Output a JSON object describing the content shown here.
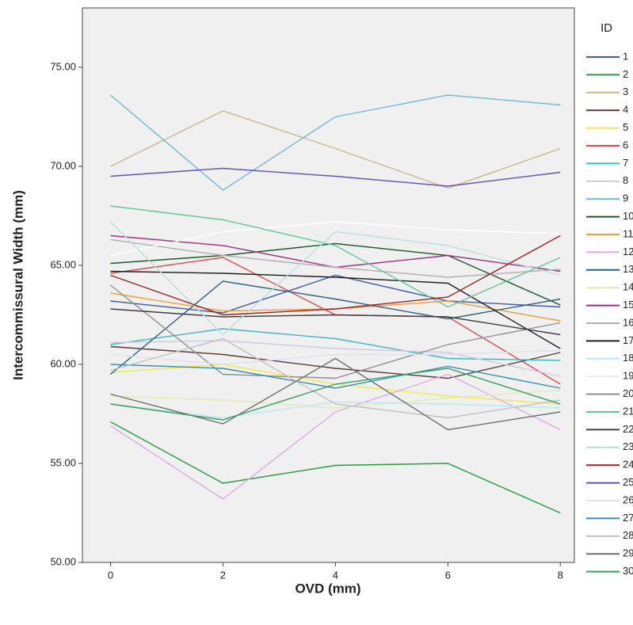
{
  "chart_data": {
    "type": "line",
    "x_label": "OVD (mm)",
    "y_label": "Intercommissural Width (mm)",
    "legend_title": "ID",
    "x": [
      0,
      2,
      4,
      6,
      8
    ],
    "xlim": [
      -0.5,
      8.25
    ],
    "xticks": [
      0,
      2,
      4,
      6,
      8
    ],
    "ylim": [
      50,
      78
    ],
    "yticks": [
      {
        "value": 50,
        "label": "50.00"
      },
      {
        "value": 55,
        "label": "55.00"
      },
      {
        "value": 60,
        "label": "60.00"
      },
      {
        "value": 65,
        "label": "65.00"
      },
      {
        "value": 70,
        "label": "70.00"
      },
      {
        "value": 75,
        "label": "75.00"
      }
    ],
    "series": [
      {
        "name": "1",
        "color": "#3e5ba8",
        "values": [
          63.2,
          62.6,
          64.5,
          63.2,
          62.9
        ]
      },
      {
        "name": "2",
        "color": "#1fa03a",
        "values": [
          57.1,
          54.0,
          54.9,
          55.0,
          52.5
        ]
      },
      {
        "name": "3",
        "color": "#c8b98a",
        "values": [
          70.0,
          72.8,
          70.9,
          68.9,
          70.9
        ]
      },
      {
        "name": "4",
        "color": "#5a3a3a",
        "values": [
          60.9,
          60.5,
          59.8,
          59.3,
          60.6
        ]
      },
      {
        "name": "5",
        "color": "#f5e84a",
        "values": [
          59.6,
          60.0,
          59.0,
          58.4,
          58.0
        ]
      },
      {
        "name": "6",
        "color": "#e04a4a",
        "values": [
          64.6,
          65.4,
          62.5,
          62.4,
          59.0
        ]
      },
      {
        "name": "7",
        "color": "#39b9c0",
        "values": [
          61.0,
          61.8,
          61.3,
          60.3,
          60.2
        ]
      },
      {
        "name": "8",
        "color": "#d0c8e0",
        "values": [
          61.1,
          61.2,
          60.8,
          60.6,
          59.4
        ]
      },
      {
        "name": "9",
        "color": "#6fb8d8",
        "values": [
          73.6,
          68.8,
          72.5,
          73.6,
          73.1
        ]
      },
      {
        "name": "10",
        "color": "#1a5a2a",
        "values": [
          65.1,
          65.5,
          66.1,
          65.5,
          63.0
        ]
      },
      {
        "name": "11",
        "color": "#f0a030",
        "values": [
          63.6,
          62.7,
          62.8,
          63.2,
          62.2
        ]
      },
      {
        "name": "12",
        "color": "#e0a8e8",
        "values": [
          56.9,
          53.2,
          57.6,
          59.5,
          56.7
        ]
      },
      {
        "name": "13",
        "color": "#2a6080",
        "values": [
          59.5,
          64.2,
          63.3,
          62.3,
          63.3
        ]
      },
      {
        "name": "14",
        "color": "#e0ecb0",
        "values": [
          58.4,
          58.2,
          57.8,
          58.3,
          58.7
        ]
      },
      {
        "name": "15",
        "color": "#a03080",
        "values": [
          66.5,
          66.0,
          64.9,
          65.5,
          64.7
        ]
      },
      {
        "name": "16",
        "color": "#b0b0b0",
        "values": [
          66.3,
          65.5,
          64.9,
          64.4,
          64.8
        ]
      },
      {
        "name": "17",
        "color": "#202020",
        "values": [
          64.7,
          64.6,
          64.4,
          64.1,
          60.8
        ]
      },
      {
        "name": "18",
        "color": "#b8e8f0",
        "values": [
          58.0,
          57.3,
          58.1,
          58.0,
          57.8
        ]
      },
      {
        "name": "19",
        "color": "#ffffff",
        "values": [
          65.5,
          66.7,
          67.2,
          66.8,
          66.6
        ]
      },
      {
        "name": "20",
        "color": "#909090",
        "values": [
          64.0,
          59.5,
          59.3,
          61.0,
          62.1
        ]
      },
      {
        "name": "21",
        "color": "#60c890",
        "values": [
          68.0,
          67.3,
          66.0,
          62.9,
          65.4
        ]
      },
      {
        "name": "22",
        "color": "#404040",
        "values": [
          62.8,
          62.4,
          62.5,
          62.4,
          61.5
        ]
      },
      {
        "name": "23",
        "color": "#b8e0e0",
        "values": [
          67.2,
          61.5,
          66.7,
          66.0,
          64.5
        ]
      },
      {
        "name": "24",
        "color": "#a02020",
        "values": [
          64.5,
          62.5,
          62.8,
          63.4,
          66.5
        ]
      },
      {
        "name": "25",
        "color": "#6050c0",
        "values": [
          69.5,
          69.9,
          69.5,
          69.0,
          69.7
        ]
      },
      {
        "name": "26",
        "color": "#e0e0f0",
        "values": [
          60.5,
          60.0,
          60.5,
          60.5,
          60.7
        ]
      },
      {
        "name": "27",
        "color": "#3090b0",
        "values": [
          60.0,
          59.8,
          58.8,
          59.9,
          58.8
        ]
      },
      {
        "name": "28",
        "color": "#c0c0c0",
        "values": [
          59.7,
          61.3,
          58.0,
          57.3,
          58.2
        ]
      },
      {
        "name": "29",
        "color": "#707070",
        "values": [
          58.5,
          57.0,
          60.3,
          56.7,
          57.6
        ]
      },
      {
        "name": "30",
        "color": "#30a060",
        "values": [
          58.0,
          57.2,
          59.0,
          59.8,
          58.0
        ]
      }
    ]
  }
}
